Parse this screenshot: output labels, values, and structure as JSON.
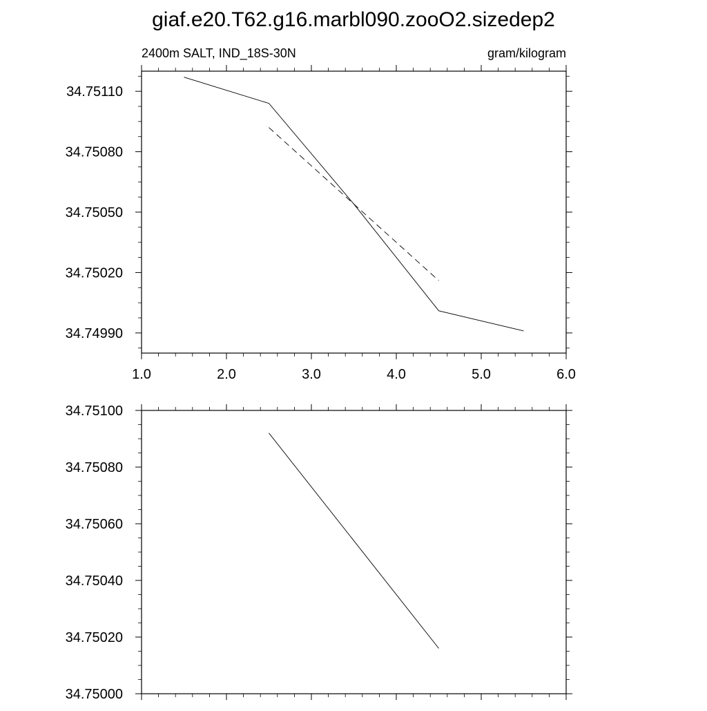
{
  "title": "giaf.e20.T62.g16.marbl090.zooO2.sizedep2",
  "chart_data": [
    {
      "type": "line",
      "left_label": "2400m SALT, IND_18S-30N",
      "right_label": "gram/kilogram",
      "xlim": [
        1.0,
        6.0
      ],
      "ylim": [
        34.7498,
        34.7512
      ],
      "x_ticks": [
        1.0,
        2.0,
        3.0,
        4.0,
        5.0,
        6.0
      ],
      "x_tick_labels": [
        "1.0",
        "2.0",
        "3.0",
        "4.0",
        "5.0",
        "6.0"
      ],
      "y_ticks": [
        34.7499,
        34.7502,
        34.7505,
        34.7508,
        34.7511
      ],
      "y_tick_labels": [
        "34.74990",
        "34.75020",
        "34.75050",
        "34.75080",
        "34.75110"
      ],
      "grid": false,
      "series": [
        {
          "style": "solid",
          "x": [
            1.5,
            2.5,
            3.5,
            4.5,
            5.5
          ],
          "y": [
            34.75117,
            34.75104,
            34.75054,
            34.75001,
            34.74991
          ]
        },
        {
          "style": "dashed",
          "x": [
            2.5,
            4.5
          ],
          "y": [
            34.75092,
            34.75016
          ]
        }
      ]
    },
    {
      "type": "line",
      "xlim": [
        1.0,
        6.0
      ],
      "ylim": [
        34.75,
        34.751
      ],
      "x_ticks": [
        1.0,
        2.0,
        3.0,
        4.0,
        5.0,
        6.0
      ],
      "y_ticks": [
        34.75,
        34.7502,
        34.7504,
        34.7506,
        34.7508,
        34.751
      ],
      "y_tick_labels": [
        "34.75000",
        "34.75020",
        "34.75040",
        "34.75060",
        "34.75080",
        "34.75100"
      ],
      "grid": false,
      "series": [
        {
          "style": "solid",
          "x": [
            2.5,
            4.5
          ],
          "y": [
            34.75092,
            34.75016
          ]
        }
      ]
    }
  ]
}
